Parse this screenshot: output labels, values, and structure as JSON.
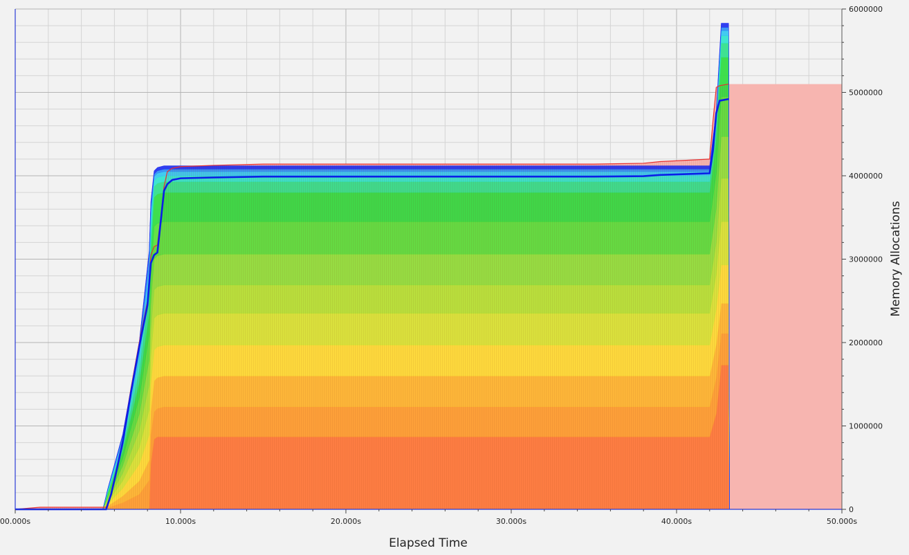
{
  "chart_data": {
    "type": "area",
    "stacked": true,
    "xlabel": "Elapsed Time",
    "ylabel": "Memory Allocations",
    "xlim": [
      0,
      50
    ],
    "ylim": [
      0,
      6000000
    ],
    "x_ticks": [
      0,
      10,
      20,
      30,
      40,
      50
    ],
    "x_tick_labels": [
      "00.000s",
      "10.000s",
      "20.000s",
      "30.000s",
      "40.000s",
      "50.000s"
    ],
    "y_ticks": [
      0,
      1000000,
      2000000,
      3000000,
      4000000,
      5000000,
      6000000
    ],
    "y_tick_labels": [
      "0",
      "1000000",
      "2000000",
      "3000000",
      "4000000",
      "5000000",
      "6000000"
    ],
    "grid": true,
    "y_axis_side": "right",
    "bands": [
      {
        "color": "#ff7a3a",
        "x": [
          0,
          8.1,
          8.2,
          8.4,
          8.6,
          42.0,
          42.4,
          42.7,
          43.15,
          43.2,
          50
        ],
        "values": [
          0,
          0,
          550000,
          840000,
          870000,
          870000,
          1150000,
          1730000,
          1730000,
          0,
          0
        ]
      },
      {
        "color": "#ffa030",
        "x": [
          0,
          5.3,
          5.6,
          6.5,
          7.5,
          8.1,
          8.4,
          9.0,
          42.0,
          42.4,
          42.7,
          43.15,
          43.2,
          50
        ],
        "values": [
          0,
          0,
          20000,
          80000,
          180000,
          350000,
          330000,
          360000,
          360000,
          430000,
          380000,
          380000,
          0,
          0
        ]
      },
      {
        "color": "#ffb830",
        "x": [
          0,
          5.3,
          5.6,
          6.5,
          7.5,
          8.1,
          8.4,
          9.0,
          42.0,
          42.4,
          42.7,
          43.15,
          43.2,
          50
        ],
        "values": [
          0,
          0,
          20000,
          80000,
          160000,
          240000,
          370000,
          370000,
          370000,
          400000,
          360000,
          360000,
          0,
          0
        ]
      },
      {
        "color": "#ffde33",
        "x": [
          0,
          5.3,
          5.6,
          6.5,
          7.5,
          8.1,
          8.4,
          9.0,
          42.0,
          42.4,
          42.7,
          43.15,
          43.2,
          50
        ],
        "values": [
          0,
          0,
          25000,
          90000,
          200000,
          300000,
          370000,
          370000,
          370000,
          420000,
          460000,
          460000,
          0,
          0
        ]
      },
      {
        "color": "#d8e733",
        "x": [
          0,
          5.3,
          5.6,
          6.5,
          7.5,
          8.1,
          8.4,
          9.0,
          42.0,
          42.4,
          42.7,
          43.15,
          43.2,
          50
        ],
        "values": [
          0,
          0,
          25000,
          90000,
          200000,
          300000,
          380000,
          380000,
          380000,
          420000,
          520000,
          520000,
          0,
          0
        ]
      },
      {
        "color": "#b4e533",
        "x": [
          0,
          5.3,
          5.6,
          6.5,
          7.5,
          8.1,
          8.4,
          9.0,
          42.0,
          42.4,
          42.7,
          43.15,
          43.2,
          50
        ],
        "values": [
          0,
          0,
          25000,
          90000,
          200000,
          300000,
          340000,
          340000,
          340000,
          380000,
          520000,
          520000,
          0,
          0
        ]
      },
      {
        "color": "#8ee23a",
        "x": [
          0,
          5.3,
          5.6,
          6.5,
          7.5,
          8.1,
          8.4,
          9.0,
          42.0,
          42.4,
          42.7,
          43.15,
          43.2,
          50
        ],
        "values": [
          0,
          0,
          25000,
          90000,
          200000,
          300000,
          370000,
          370000,
          370000,
          410000,
          500000,
          500000,
          0,
          0
        ]
      },
      {
        "color": "#58e03a",
        "x": [
          0,
          5.3,
          5.6,
          6.5,
          7.5,
          8.1,
          8.4,
          9.0,
          42.0,
          42.4,
          42.7,
          43.15,
          43.2,
          50
        ],
        "values": [
          0,
          0,
          25000,
          90000,
          200000,
          300000,
          390000,
          390000,
          390000,
          420000,
          480000,
          480000,
          0,
          0
        ]
      },
      {
        "color": "#30dc40",
        "x": [
          0,
          5.3,
          5.6,
          6.5,
          7.5,
          8.1,
          8.4,
          9.0,
          42.0,
          42.4,
          42.7,
          43.15,
          43.2,
          50
        ],
        "values": [
          0,
          0,
          25000,
          80000,
          180000,
          250000,
          350000,
          350000,
          350000,
          390000,
          470000,
          470000,
          0,
          0
        ]
      },
      {
        "color": "#30e08a",
        "x": [
          0,
          5.3,
          5.6,
          6.5,
          7.5,
          8.1,
          8.4,
          9.0,
          42.0,
          42.4,
          42.7,
          43.15,
          43.2,
          50
        ],
        "values": [
          0,
          0,
          20000,
          60000,
          150000,
          230000,
          130000,
          130000,
          130000,
          140000,
          170000,
          170000,
          0,
          0
        ]
      },
      {
        "color": "#30e4cc",
        "x": [
          0,
          5.3,
          5.6,
          6.5,
          7.5,
          8.1,
          8.4,
          9.0,
          42.0,
          42.4,
          42.7,
          43.15,
          43.2,
          50
        ],
        "values": [
          0,
          0,
          15000,
          50000,
          120000,
          190000,
          70000,
          70000,
          70000,
          80000,
          90000,
          90000,
          0,
          0
        ]
      },
      {
        "color": "#34c8f0",
        "x": [
          0,
          5.3,
          5.6,
          6.5,
          7.5,
          8.1,
          8.4,
          9.0,
          42.0,
          42.4,
          42.7,
          43.15,
          43.2,
          50
        ],
        "values": [
          0,
          0,
          10000,
          40000,
          90000,
          140000,
          50000,
          50000,
          50000,
          55000,
          60000,
          60000,
          0,
          0
        ]
      },
      {
        "color": "#2e8ef4",
        "x": [
          0,
          5.3,
          5.6,
          6.5,
          7.5,
          8.1,
          8.4,
          9.0,
          42.0,
          42.4,
          42.7,
          43.15,
          43.2,
          50
        ],
        "values": [
          0,
          0,
          10000,
          40000,
          90000,
          140000,
          30000,
          30000,
          30000,
          40000,
          40000,
          40000,
          0,
          0
        ]
      },
      {
        "color": "#2030f0",
        "x": [
          0,
          5.3,
          5.6,
          6.5,
          7.5,
          8.1,
          8.4,
          9.0,
          42.0,
          42.4,
          42.7,
          43.15,
          43.2,
          50
        ],
        "values": [
          0,
          0,
          5000,
          20000,
          40000,
          60000,
          40000,
          40000,
          40000,
          45000,
          50000,
          50000,
          0,
          0
        ]
      }
    ],
    "heap_line": {
      "color": "#0a1ee8",
      "x": [
        0,
        5.5,
        5.8,
        6.0,
        6.5,
        7.0,
        7.5,
        8.0,
        8.2,
        8.4,
        8.6,
        8.8,
        9.0,
        9.2,
        9.5,
        10.0,
        12.0,
        15.0,
        20.0,
        25.0,
        30.0,
        35.0,
        38.0,
        39.0,
        42.0,
        42.2,
        42.4,
        42.6,
        43.15
      ],
      "values": [
        0,
        0,
        180000,
        350000,
        800000,
        1400000,
        1950000,
        2450000,
        2950000,
        3050000,
        3080000,
        3450000,
        3820000,
        3900000,
        3950000,
        3970000,
        3980000,
        3990000,
        3990000,
        3990000,
        3990000,
        3990000,
        3995000,
        4010000,
        4030000,
        4300000,
        4750000,
        4900000,
        4920000
      ]
    },
    "total_line": {
      "color": "#e83030",
      "fill": "#f7b5b0",
      "x": [
        0,
        1.5,
        5.5,
        5.8,
        6.0,
        6.5,
        7.0,
        7.5,
        8.0,
        8.2,
        8.4,
        8.6,
        8.8,
        9.0,
        9.2,
        9.5,
        10.0,
        12.0,
        15.0,
        20.0,
        25.0,
        30.0,
        35.0,
        38.0,
        39.0,
        42.0,
        42.2,
        42.4,
        42.6,
        43.15
      ],
      "values": [
        0,
        25000,
        25000,
        200000,
        380000,
        830000,
        1450000,
        2000000,
        2500000,
        3050000,
        3150000,
        3170000,
        3500000,
        3870000,
        4050000,
        4090000,
        4110000,
        4125000,
        4140000,
        4140000,
        4140000,
        4140000,
        4140000,
        4150000,
        4170000,
        4200000,
        4650000,
        5060000,
        5080000,
        5100000
      ]
    }
  }
}
